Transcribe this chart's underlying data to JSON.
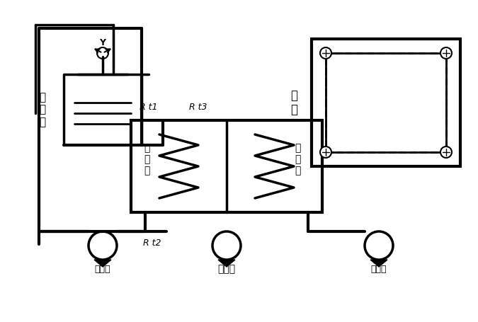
{
  "title": "",
  "bg_color": "#ffffff",
  "line_color": "#000000",
  "labels": {
    "cooling_tower": "冷\n却\n塔",
    "room": "房\n间",
    "chiller_cooling": "冷\n却\n水",
    "chiller_chilled": "冷\n冻\n水",
    "cooling_pump": "冷却泵",
    "chilled_pump": "冷冻泵",
    "compressor": "压缩机",
    "rt1": "R t1",
    "rt2": "R t2",
    "rt3": "R t3"
  },
  "figsize": [
    6.75,
    4.55
  ],
  "dpi": 100
}
